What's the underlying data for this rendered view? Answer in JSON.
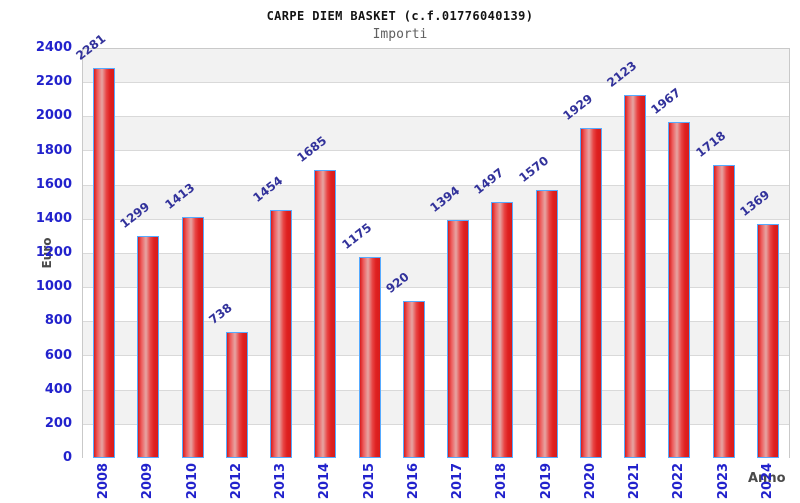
{
  "header": {
    "title": "CARPE DIEM BASKET (c.f.01776040139)",
    "subtitle": "Importi"
  },
  "chart_data": {
    "type": "bar",
    "title": "CARPE DIEM BASKET (c.f.01776040139)",
    "subtitle": "Importi",
    "xlabel": "Anno",
    "ylabel": "Euro",
    "categories": [
      "2008",
      "2009",
      "2010",
      "2012",
      "2013",
      "2014",
      "2015",
      "2016",
      "2017",
      "2018",
      "2019",
      "2020",
      "2021",
      "2022",
      "2023",
      "2024"
    ],
    "values": [
      2281,
      1299,
      1413,
      738,
      1454,
      1685,
      1175,
      920,
      1394,
      1497,
      1570,
      1929,
      2123,
      1967,
      1718,
      1369
    ],
    "ylim": [
      0,
      2400
    ],
    "ytick_step": 200,
    "grid": true,
    "legend": "none",
    "value_labels_rotated_deg": -38,
    "colors": {
      "bar_fill": "#e02020",
      "bar_fill_highlight": "#e6a5a3",
      "bar_border": "#55aaff",
      "tick_label": "#2222cc",
      "value_label": "#32329b",
      "axis_title": "#4a4a4a",
      "band_gray": "#f2f2f2",
      "band_white": "#ffffff",
      "gridline": "#d9d9d9",
      "plot_border": "#c9c9c9"
    }
  }
}
